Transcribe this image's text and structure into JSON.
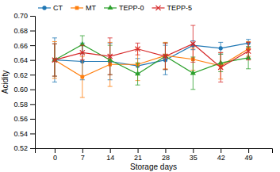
{
  "chart_data": {
    "type": "line",
    "x_label": "Storage days",
    "y_label": "Acidity",
    "x": [
      0,
      7,
      14,
      21,
      28,
      35,
      42,
      49
    ],
    "xlim": [
      -5,
      55
    ],
    "xticks": [
      0,
      7,
      14,
      21,
      28,
      35,
      42,
      49
    ],
    "ylim": [
      0.52,
      0.7
    ],
    "yticks": [
      0.52,
      0.54,
      0.56,
      0.58,
      {
        "value": 0.6,
        "label": "0.60"
      },
      0.62,
      0.64,
      0.66,
      0.68,
      {
        "value": 0.7,
        "label": "0.70"
      }
    ],
    "grid": false,
    "legend": "upper left",
    "series": [
      {
        "name": "CT",
        "marker": "circle",
        "values": [
          0.64,
          0.638,
          0.638,
          0.632,
          0.64,
          0.66,
          0.656,
          0.663
        ],
        "errors": [
          0.03,
          0.025,
          0.025,
          0.01,
          0.02,
          0.006,
          0.008,
          0.005
        ]
      },
      {
        "name": "MT",
        "marker": "square",
        "values": [
          0.64,
          0.617,
          0.634,
          0.634,
          0.646,
          0.641,
          0.632,
          0.655
        ],
        "errors": [
          0.025,
          0.028,
          0.03,
          0.022,
          0.018,
          0.015,
          0.018,
          0.01
        ]
      },
      {
        "name": "TEPP-0",
        "marker": "triangle",
        "values": [
          0.64,
          0.661,
          0.64,
          0.621,
          0.645,
          0.622,
          0.636,
          0.643
        ],
        "errors": [
          0.022,
          0.012,
          0.02,
          0.015,
          0.018,
          0.022,
          0.012,
          0.015
        ]
      },
      {
        "name": "TEPP-5",
        "marker": "cross",
        "values": [
          0.64,
          0.65,
          0.645,
          0.655,
          0.645,
          0.662,
          0.63,
          0.652
        ],
        "errors": [
          0.022,
          0.01,
          0.025,
          0.008,
          0.018,
          0.025,
          0.02,
          0.012
        ]
      }
    ]
  }
}
